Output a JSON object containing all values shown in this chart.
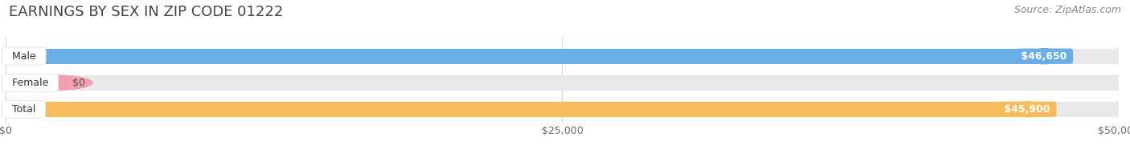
{
  "title": "EARNINGS BY SEX IN ZIP CODE 01222",
  "source": "Source: ZipAtlas.com",
  "categories": [
    "Male",
    "Female",
    "Total"
  ],
  "values": [
    46650,
    0,
    45900
  ],
  "bar_colors": [
    "#6aaee8",
    "#f2a0b0",
    "#f5bb5c"
  ],
  "value_labels": [
    "$46,650",
    "$0",
    "$45,900"
  ],
  "xlim": [
    0,
    50000
  ],
  "xtick_labels": [
    "$0",
    "$25,000",
    "$50,000"
  ],
  "bar_height": 0.58,
  "background_color": "#ffffff",
  "bar_bg_color": "#e8e8e8",
  "title_fontsize": 13,
  "source_fontsize": 9,
  "tick_fontsize": 9,
  "bar_label_fontsize": 9,
  "category_fontsize": 9
}
